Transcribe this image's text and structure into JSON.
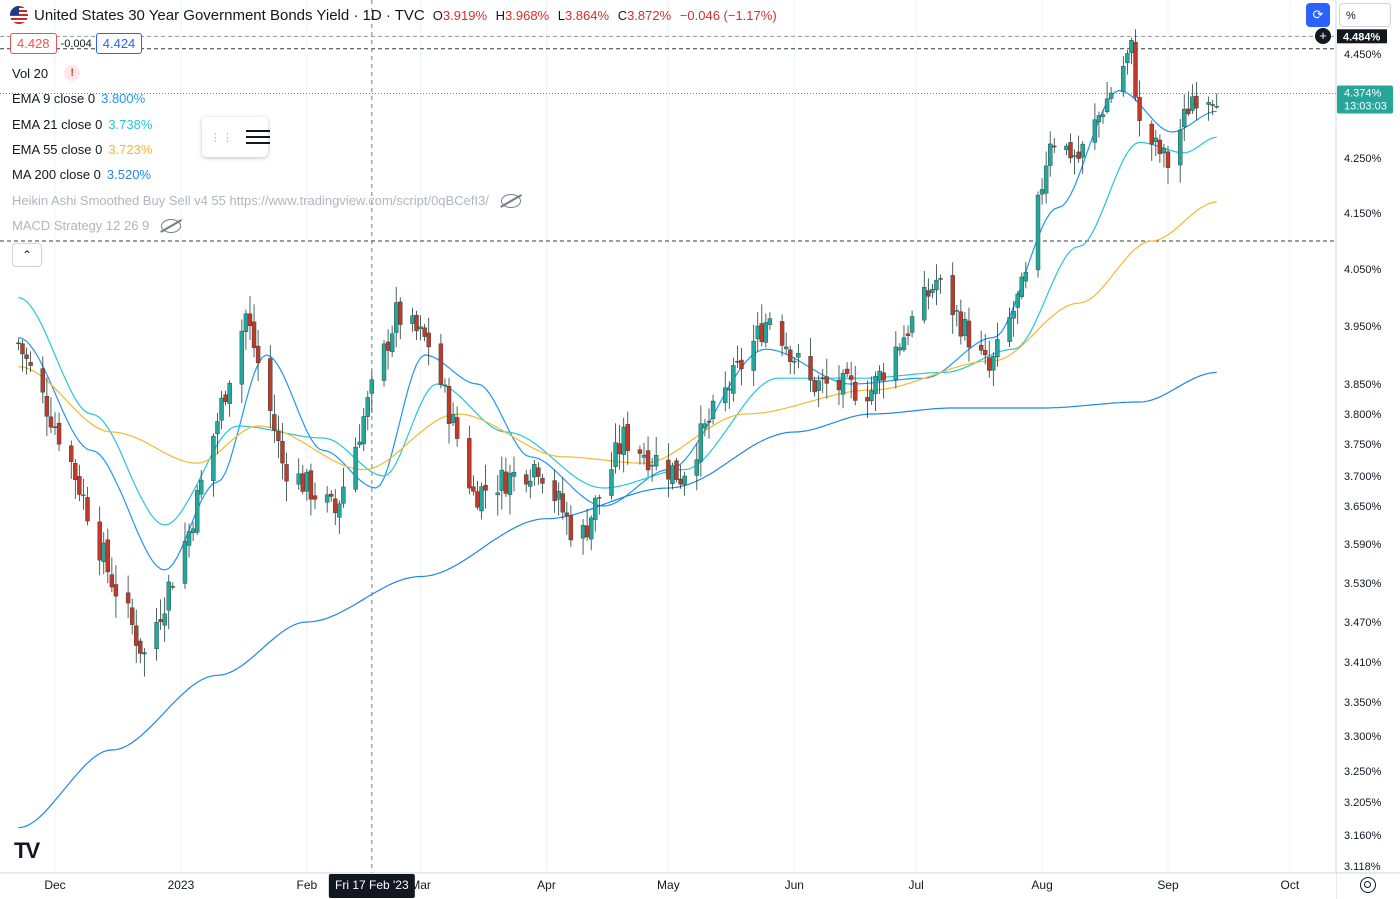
{
  "header": {
    "title": "United States 30 Year Government Bonds Yield · 1D · TVC",
    "ohlc": [
      {
        "key": "O",
        "value": "3.919%"
      },
      {
        "key": "H",
        "value": "3.968%"
      },
      {
        "key": "L",
        "value": "3.864%"
      },
      {
        "key": "C",
        "value": "3.872%"
      }
    ],
    "change": "−0.046 (−1.17%)"
  },
  "prices": {
    "sell": "4.428",
    "spread": "-0.004",
    "buy": "4.424"
  },
  "indicators": {
    "vol": {
      "label": "Vol 20",
      "warning": "!"
    },
    "ema9": {
      "label": "EMA 9 close 0",
      "value": "3.800%",
      "color": "#2196f3"
    },
    "ema21": {
      "label": "EMA 21 close 0",
      "value": "3.738%",
      "color": "#26c6da"
    },
    "ema55": {
      "label": "EMA 55 close 0",
      "value": "3.723%",
      "color": "#f5b82e"
    },
    "ma200": {
      "label": "MA 200 close 0",
      "value": "3.520%",
      "color": "#1e88e5"
    },
    "heikin": {
      "label": "Heikin Ashi Smoothed Buy Sell v4 55 https://www.tradingview.com/script/0qBCefI3/"
    },
    "macd": {
      "label": "MACD Strategy 12 26 9"
    }
  },
  "icons": {
    "logo": "TV",
    "collapse": "⌃",
    "plus": "+",
    "percent": "%",
    "settings": "gear-icon"
  },
  "colors": {
    "up": "#26a69a",
    "down": "#c0392b",
    "dash": "#131722"
  },
  "chart_data": {
    "type": "candlestick",
    "title": "United States 30 Year Government Bonds Yield",
    "timeframe": "1D",
    "xlim": [
      "2022-11-22",
      "2023-10-13"
    ],
    "ylim": [
      3.11,
      4.5
    ],
    "y_ticks": [
      "4.450%",
      "4.250%",
      "4.150%",
      "4.050%",
      "3.950%",
      "3.850%",
      "3.800%",
      "3.750%",
      "3.700%",
      "3.650%",
      "3.590%",
      "3.530%",
      "3.470%",
      "3.410%",
      "3.350%",
      "3.300%",
      "3.250%",
      "3.205%",
      "3.160%",
      "3.118%"
    ],
    "y_tick_values": [
      4.45,
      4.25,
      4.15,
      4.05,
      3.95,
      3.85,
      3.8,
      3.75,
      3.7,
      3.65,
      3.59,
      3.53,
      3.47,
      3.41,
      3.35,
      3.3,
      3.25,
      3.205,
      3.16,
      3.118
    ],
    "x_ticks": [
      {
        "label": "Dec",
        "date": "2022-12-01"
      },
      {
        "label": "2023",
        "date": "2023-01-01"
      },
      {
        "label": "Feb",
        "date": "2023-02-01"
      },
      {
        "label": "Mar",
        "date": "2023-03-01"
      },
      {
        "label": "Apr",
        "date": "2023-04-01"
      },
      {
        "label": "May",
        "date": "2023-05-01"
      },
      {
        "label": "Jun",
        "date": "2023-06-01"
      },
      {
        "label": "Jul",
        "date": "2023-07-01"
      },
      {
        "label": "Aug",
        "date": "2023-08-01"
      },
      {
        "label": "Sep",
        "date": "2023-09-01"
      },
      {
        "label": "Oct",
        "date": "2023-10-01"
      }
    ],
    "crosshair_label": "Fri 17 Feb '23",
    "crosshair_date": "2023-02-17",
    "last_price": {
      "value": 4.374,
      "label": "4.374%",
      "timer": "13:03:03"
    },
    "high_marker": {
      "value": 4.484,
      "label": "4.484%"
    },
    "dashed_levels": [
      4.484,
      4.46,
      4.1
    ],
    "candle_path": [
      [
        "2022-11-22",
        3.92
      ],
      [
        "2022-12-05",
        3.72
      ],
      [
        "2022-12-14",
        3.55
      ],
      [
        "2022-12-23",
        3.42
      ],
      [
        "2023-01-03",
        3.61
      ],
      [
        "2023-01-17",
        3.97
      ],
      [
        "2023-01-26",
        3.72
      ],
      [
        "2023-02-08",
        3.64
      ],
      [
        "2023-02-23",
        3.97
      ],
      [
        "2023-03-03",
        3.92
      ],
      [
        "2023-03-14",
        3.67
      ],
      [
        "2023-03-30",
        3.72
      ],
      [
        "2023-04-09",
        3.59
      ],
      [
        "2023-04-20",
        3.76
      ],
      [
        "2023-05-04",
        3.7
      ],
      [
        "2023-05-26",
        3.97
      ],
      [
        "2023-06-05",
        3.85
      ],
      [
        "2023-06-20",
        3.84
      ],
      [
        "2023-07-06",
        4.03
      ],
      [
        "2023-07-19",
        3.87
      ],
      [
        "2023-07-28",
        4.03
      ],
      [
        "2023-08-03",
        4.29
      ],
      [
        "2023-08-10",
        4.25
      ],
      [
        "2023-08-23",
        4.46
      ],
      [
        "2023-08-25",
        4.31
      ],
      [
        "2023-09-01",
        4.24
      ],
      [
        "2023-09-07",
        4.37
      ],
      [
        "2023-09-13",
        4.374
      ]
    ],
    "series": [
      {
        "name": "EMA 9 close 0",
        "color": "#2196f3",
        "points": [
          [
            "2022-11-22",
            3.93
          ],
          [
            "2022-12-10",
            3.74
          ],
          [
            "2022-12-28",
            3.55
          ],
          [
            "2023-01-10",
            3.69
          ],
          [
            "2023-01-22",
            3.9
          ],
          [
            "2023-02-05",
            3.74
          ],
          [
            "2023-02-18",
            3.68
          ],
          [
            "2023-03-02",
            3.9
          ],
          [
            "2023-03-15",
            3.85
          ],
          [
            "2023-03-28",
            3.73
          ],
          [
            "2023-04-15",
            3.65
          ],
          [
            "2023-05-01",
            3.71
          ],
          [
            "2023-05-25",
            3.91
          ],
          [
            "2023-06-15",
            3.85
          ],
          [
            "2023-07-03",
            3.86
          ],
          [
            "2023-07-20",
            3.93
          ],
          [
            "2023-08-05",
            4.16
          ],
          [
            "2023-08-20",
            4.38
          ],
          [
            "2023-09-02",
            4.3
          ],
          [
            "2023-09-13",
            4.34
          ]
        ]
      },
      {
        "name": "EMA 21 close 0",
        "color": "#26c6da",
        "points": [
          [
            "2022-11-22",
            4.0
          ],
          [
            "2022-12-10",
            3.8
          ],
          [
            "2022-12-28",
            3.62
          ],
          [
            "2023-01-15",
            3.78
          ],
          [
            "2023-02-05",
            3.76
          ],
          [
            "2023-02-20",
            3.7
          ],
          [
            "2023-03-05",
            3.85
          ],
          [
            "2023-03-22",
            3.77
          ],
          [
            "2023-04-15",
            3.68
          ],
          [
            "2023-05-05",
            3.71
          ],
          [
            "2023-05-28",
            3.86
          ],
          [
            "2023-06-18",
            3.86
          ],
          [
            "2023-07-08",
            3.87
          ],
          [
            "2023-07-25",
            3.91
          ],
          [
            "2023-08-10",
            4.09
          ],
          [
            "2023-08-25",
            4.28
          ],
          [
            "2023-09-05",
            4.26
          ],
          [
            "2023-09-13",
            4.29
          ]
        ]
      },
      {
        "name": "EMA 55 close 0",
        "color": "#f5b82e",
        "points": [
          [
            "2022-11-22",
            3.88
          ],
          [
            "2022-12-15",
            3.77
          ],
          [
            "2023-01-05",
            3.72
          ],
          [
            "2023-01-20",
            3.78
          ],
          [
            "2023-02-15",
            3.71
          ],
          [
            "2023-03-10",
            3.8
          ],
          [
            "2023-04-05",
            3.73
          ],
          [
            "2023-04-25",
            3.72
          ],
          [
            "2023-05-20",
            3.8
          ],
          [
            "2023-06-20",
            3.84
          ],
          [
            "2023-07-20",
            3.89
          ],
          [
            "2023-08-10",
            3.99
          ],
          [
            "2023-08-28",
            4.1
          ],
          [
            "2023-09-13",
            4.17
          ]
        ]
      },
      {
        "name": "MA 200 close 0",
        "color": "#1e88e5",
        "points": [
          [
            "2022-11-22",
            3.17
          ],
          [
            "2022-12-15",
            3.28
          ],
          [
            "2023-01-10",
            3.39
          ],
          [
            "2023-02-01",
            3.47
          ],
          [
            "2023-03-01",
            3.54
          ],
          [
            "2023-04-01",
            3.63
          ],
          [
            "2023-05-01",
            3.68
          ],
          [
            "2023-06-01",
            3.77
          ],
          [
            "2023-06-20",
            3.8
          ],
          [
            "2023-07-10",
            3.81
          ],
          [
            "2023-08-01",
            3.81
          ],
          [
            "2023-08-25",
            3.82
          ],
          [
            "2023-09-13",
            3.87
          ]
        ]
      }
    ]
  }
}
